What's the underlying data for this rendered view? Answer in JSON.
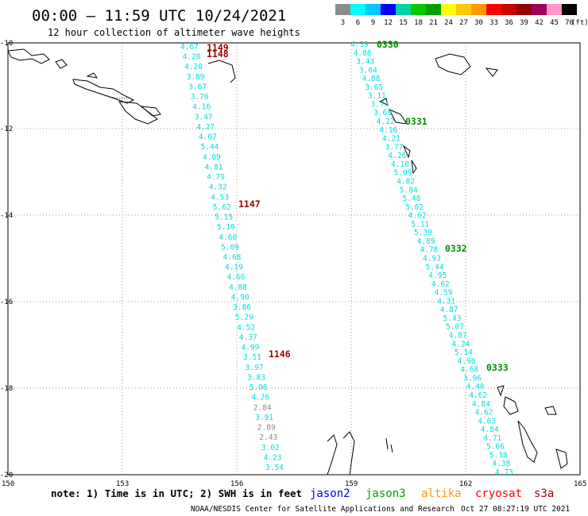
{
  "title": "00:00 – 11:59 UTC 10/24/2021",
  "subtitle": "12 hour collection of altimeter wave heights",
  "scale": {
    "unit": "(ft)",
    "labels": [
      "3",
      "6",
      "9",
      "12",
      "15",
      "18",
      "21",
      "24",
      "27",
      "30",
      "33",
      "36",
      "39",
      "42",
      "45",
      "70"
    ],
    "colors": [
      "#8c8c8c",
      "#00ffff",
      "#00c8ff",
      "#0000ff",
      "#00d2a0",
      "#00c800",
      "#00a000",
      "#ffff00",
      "#ffc800",
      "#ff9600",
      "#ff0000",
      "#c80000",
      "#960000",
      "#a0005a",
      "#ff96c8",
      "#000000"
    ]
  },
  "lat_labels": [
    "-10",
    "-12",
    "-14",
    "-16",
    "-18",
    "-20"
  ],
  "lon_labels": [
    "150",
    "153",
    "156",
    "159",
    "162",
    "165"
  ],
  "tracks": {
    "left": {
      "time_labels": [
        {
          "text": "1149",
          "color": "#9b0000"
        },
        {
          "text": "1148",
          "color": "#9b0000"
        },
        {
          "text": "1147",
          "color": "#9b0000"
        },
        {
          "text": "1146",
          "color": "#9b0000"
        }
      ],
      "values": [
        {
          "v": "4.67",
          "c": "#00dddd"
        },
        {
          "v": "4.28",
          "c": "#00dddd"
        },
        {
          "v": "4.28",
          "c": "#00dddd"
        },
        {
          "v": "3.89",
          "c": "#00dddd"
        },
        {
          "v": "3.67",
          "c": "#00dddd"
        },
        {
          "v": "3.76",
          "c": "#00dddd"
        },
        {
          "v": "4.16",
          "c": "#00dddd"
        },
        {
          "v": "3.47",
          "c": "#00dddd"
        },
        {
          "v": "4.27",
          "c": "#00dddd"
        },
        {
          "v": "4.07",
          "c": "#00dddd"
        },
        {
          "v": "5.44",
          "c": "#00dddd"
        },
        {
          "v": "4.09",
          "c": "#00dddd"
        },
        {
          "v": "4.81",
          "c": "#00dddd"
        },
        {
          "v": "4.79",
          "c": "#00dddd"
        },
        {
          "v": "4.32",
          "c": "#00dddd"
        },
        {
          "v": "4.53",
          "c": "#00dddd"
        },
        {
          "v": "5.62",
          "c": "#00dddd"
        },
        {
          "v": "5.15",
          "c": "#00dddd"
        },
        {
          "v": "5.10",
          "c": "#00dddd"
        },
        {
          "v": "4.60",
          "c": "#00dddd"
        },
        {
          "v": "5.09",
          "c": "#00dddd"
        },
        {
          "v": "4.68",
          "c": "#00dddd"
        },
        {
          "v": "4.19",
          "c": "#00dddd"
        },
        {
          "v": "4.66",
          "c": "#00dddd"
        },
        {
          "v": "4.88",
          "c": "#00dddd"
        },
        {
          "v": "4.90",
          "c": "#00dddd"
        },
        {
          "v": "3.86",
          "c": "#00dddd"
        },
        {
          "v": "5.29",
          "c": "#00dddd"
        },
        {
          "v": "4.52",
          "c": "#00dddd"
        },
        {
          "v": "4.37",
          "c": "#00dddd"
        },
        {
          "v": "4.99",
          "c": "#00dddd"
        },
        {
          "v": "3.51",
          "c": "#00dddd"
        },
        {
          "v": "3.97",
          "c": "#00dddd"
        },
        {
          "v": "3.83",
          "c": "#00dddd"
        },
        {
          "v": "5.06",
          "c": "#00dddd"
        },
        {
          "v": "4.26",
          "c": "#00dddd"
        },
        {
          "v": "2.84",
          "c": "#8c8c8c"
        },
        {
          "v": "3.91",
          "c": "#00dddd"
        },
        {
          "v": "2.89",
          "c": "#8c8c8c"
        },
        {
          "v": "2.43",
          "c": "#8c8c8c"
        },
        {
          "v": "3.02",
          "c": "#00dddd"
        },
        {
          "v": "4.23",
          "c": "#00dddd"
        },
        {
          "v": "3.54",
          "c": "#00dddd"
        }
      ]
    },
    "right": {
      "time_labels": [
        {
          "text": "0330",
          "color": "#008c00"
        },
        {
          "text": "0331",
          "color": "#008c00"
        },
        {
          "text": "0332",
          "color": "#008c00"
        },
        {
          "text": "0333",
          "color": "#008c00"
        }
      ],
      "values": [
        {
          "v": "4.39",
          "c": "#00dddd"
        },
        {
          "v": "4.88",
          "c": "#00dddd"
        },
        {
          "v": "3.43",
          "c": "#00dddd"
        },
        {
          "v": "3.64",
          "c": "#00dddd"
        },
        {
          "v": "4.88",
          "c": "#00dddd"
        },
        {
          "v": "3.65",
          "c": "#00dddd"
        },
        {
          "v": "3.11",
          "c": "#00dddd"
        },
        {
          "v": "3.74",
          "c": "#00dddd"
        },
        {
          "v": "3.69",
          "c": "#00dddd"
        },
        {
          "v": "4.22",
          "c": "#00dddd"
        },
        {
          "v": "4.16",
          "c": "#00dddd"
        },
        {
          "v": "4.21",
          "c": "#00dddd"
        },
        {
          "v": "3.77",
          "c": "#00dddd"
        },
        {
          "v": "4.26",
          "c": "#00dddd"
        },
        {
          "v": "4.10",
          "c": "#00dddd"
        },
        {
          "v": "5.09",
          "c": "#00dddd"
        },
        {
          "v": "4.82",
          "c": "#00dddd"
        },
        {
          "v": "5.84",
          "c": "#00dddd"
        },
        {
          "v": "5.48",
          "c": "#00dddd"
        },
        {
          "v": "5.02",
          "c": "#00dddd"
        },
        {
          "v": "4.62",
          "c": "#00dddd"
        },
        {
          "v": "5.11",
          "c": "#00dddd"
        },
        {
          "v": "5.30",
          "c": "#00dddd"
        },
        {
          "v": "4.89",
          "c": "#00dddd"
        },
        {
          "v": "4.78",
          "c": "#00dddd"
        },
        {
          "v": "4.93",
          "c": "#00dddd"
        },
        {
          "v": "5.44",
          "c": "#00dddd"
        },
        {
          "v": "4.95",
          "c": "#00dddd"
        },
        {
          "v": "4.62",
          "c": "#00dddd"
        },
        {
          "v": "4.59",
          "c": "#00dddd"
        },
        {
          "v": "4.31",
          "c": "#00dddd"
        },
        {
          "v": "4.87",
          "c": "#00dddd"
        },
        {
          "v": "5.43",
          "c": "#00dddd"
        },
        {
          "v": "5.07",
          "c": "#00dddd"
        },
        {
          "v": "4.87",
          "c": "#00dddd"
        },
        {
          "v": "4.24",
          "c": "#00dddd"
        },
        {
          "v": "5.14",
          "c": "#00dddd"
        },
        {
          "v": "4.90",
          "c": "#00dddd"
        },
        {
          "v": "4.68",
          "c": "#00dddd"
        },
        {
          "v": "3.96",
          "c": "#00dddd"
        },
        {
          "v": "4.40",
          "c": "#00dddd"
        },
        {
          "v": "4.62",
          "c": "#00dddd"
        },
        {
          "v": "4.84",
          "c": "#00dddd"
        },
        {
          "v": "4.62",
          "c": "#00dddd"
        },
        {
          "v": "4.63",
          "c": "#00dddd"
        },
        {
          "v": "4.84",
          "c": "#00dddd"
        },
        {
          "v": "4.71",
          "c": "#00dddd"
        },
        {
          "v": "5.66",
          "c": "#00dddd"
        },
        {
          "v": "5.38",
          "c": "#00dddd"
        },
        {
          "v": "4.38",
          "c": "#00dddd"
        },
        {
          "v": "4.73",
          "c": "#00dddd"
        }
      ]
    }
  },
  "note": "note: 1) Time is in UTC; 2) SWH is in feet",
  "legend": [
    {
      "label": "jason2",
      "color": "#0000ff"
    },
    {
      "label": "jason3",
      "color": "#00a000"
    },
    {
      "label": "altika",
      "color": "#ff9600"
    },
    {
      "label": "cryosat",
      "color": "#ff0000"
    },
    {
      "label": "s3a",
      "color": "#9b0000"
    }
  ],
  "footer_credit": "NOAA/NESDIS Center for Satellite Applications and Research",
  "footer_time": "Oct 27 08:27:19 UTC 2021"
}
